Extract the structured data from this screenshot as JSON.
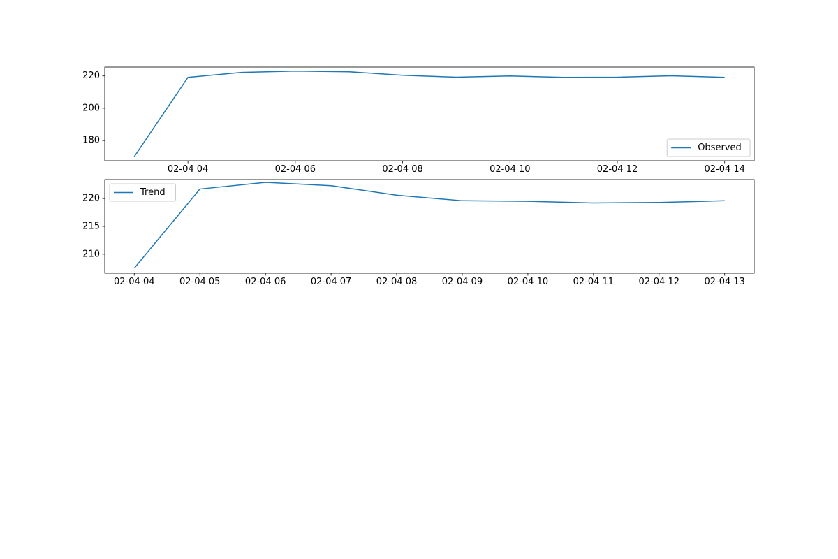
{
  "chart_data": [
    {
      "type": "line",
      "title": "",
      "xlabel": "",
      "ylabel": "",
      "x": [
        "02-04 03:00",
        "02-04 04:00",
        "02-04 05:00",
        "02-04 06:00",
        "02-04 07:00",
        "02-04 08:00",
        "02-04 09:00",
        "02-04 10:00",
        "02-04 11:00",
        "02-04 12:00",
        "02-04 13:00",
        "02-04 14:00"
      ],
      "series": [
        {
          "name": "Observed",
          "values": [
            170.0,
            219.1,
            222.2,
            223.0,
            222.6,
            220.4,
            219.2,
            220.0,
            219.1,
            219.2,
            220.1,
            219.1
          ],
          "color": "#1f77b4"
        }
      ],
      "xticks": [
        "02-04 04:00",
        "02-04 06:00",
        "02-04 08:00",
        "02-04 10:00",
        "02-04 12:00",
        "02-04 14:00"
      ],
      "xtick_labels": [
        "02-04 04",
        "02-04 06",
        "02-04 08",
        "02-04 10",
        "02-04 12",
        "02-04 14"
      ],
      "yticks": [
        180,
        200,
        220
      ],
      "ylim": [
        167.5,
        225.5
      ],
      "xlim": [
        "02-04 02:27",
        "02-04 14:33"
      ],
      "grid": false,
      "legend": "lower right"
    },
    {
      "type": "line",
      "title": "",
      "xlabel": "",
      "ylabel": "",
      "x": [
        "02-04 04:00",
        "02-04 05:00",
        "02-04 06:00",
        "02-04 07:00",
        "02-04 08:00",
        "02-04 09:00",
        "02-04 10:00",
        "02-04 11:00",
        "02-04 12:00",
        "02-04 13:00"
      ],
      "series": [
        {
          "name": "Trend",
          "values": [
            207.5,
            221.7,
            222.9,
            222.3,
            220.6,
            219.6,
            219.5,
            219.2,
            219.3,
            219.6
          ],
          "color": "#1f77b4"
        }
      ],
      "xticks": [
        "02-04 04:00",
        "02-04 05:00",
        "02-04 06:00",
        "02-04 07:00",
        "02-04 08:00",
        "02-04 09:00",
        "02-04 10:00",
        "02-04 11:00",
        "02-04 12:00",
        "02-04 13:00"
      ],
      "xtick_labels": [
        "02-04 04",
        "02-04 05",
        "02-04 06",
        "02-04 07",
        "02-04 08",
        "02-04 09",
        "02-04 10",
        "02-04 11",
        "02-04 12",
        "02-04 13"
      ],
      "yticks": [
        210,
        215,
        220
      ],
      "ylim": [
        206.6,
        223.4
      ],
      "xlim": [
        "02-04 03:33",
        "02-04 13:27"
      ],
      "grid": false,
      "legend": "upper left"
    }
  ]
}
